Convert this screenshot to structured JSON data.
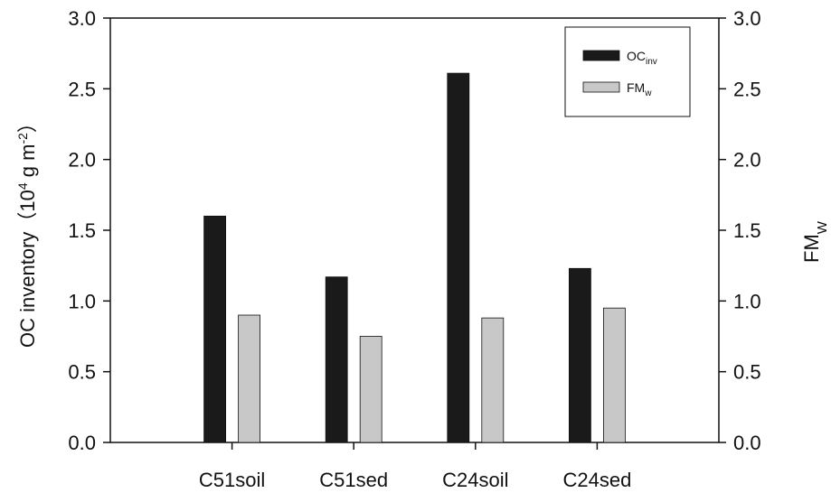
{
  "chart_data": {
    "type": "bar",
    "categories": [
      "C51soil",
      "C51sed",
      "C24soil",
      "C24sed"
    ],
    "series": [
      {
        "name": "OC",
        "name_sub": "inv",
        "color": "#1a1a1a",
        "axis": "left",
        "values": [
          1.6,
          1.17,
          2.61,
          1.23
        ]
      },
      {
        "name": "FM",
        "name_sub": "w",
        "color": "#c8c8c8",
        "axis": "right",
        "values": [
          0.9,
          0.75,
          0.88,
          0.95
        ]
      }
    ],
    "ylabel_left": {
      "main": "OC inventory（10",
      "sup1": "4",
      "mid": " g m",
      "sup2": "-2",
      "end": "）"
    },
    "ylabel_right": {
      "main": "FM",
      "sub": "W"
    },
    "ylim_left": [
      0,
      3.0
    ],
    "ylim_right": [
      0,
      3.0
    ],
    "yticks": [
      "0.0",
      "0.5",
      "1.0",
      "1.5",
      "2.0",
      "2.5",
      "3.0"
    ],
    "legend_position": "top-right",
    "grid": false
  }
}
